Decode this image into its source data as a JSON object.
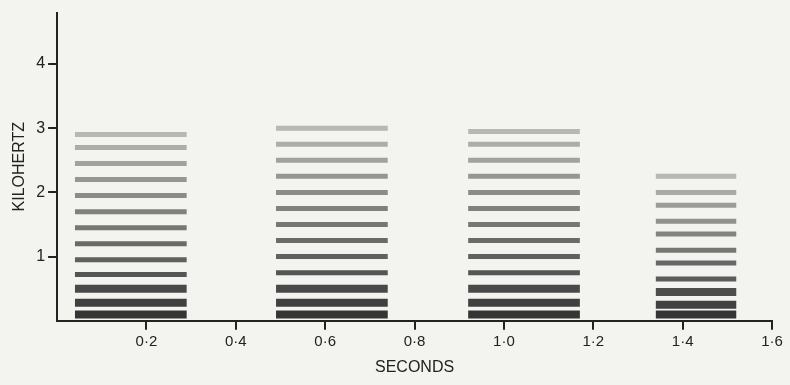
{
  "chart_data": {
    "type": "spectrogram",
    "xlabel": "SECONDS",
    "ylabel": "KILOHERTZ",
    "xlim": [
      0,
      1.6
    ],
    "ylim": [
      0,
      4.8
    ],
    "xticks": [
      {
        "value": 0.2,
        "label": "0·2"
      },
      {
        "value": 0.4,
        "label": "0·4"
      },
      {
        "value": 0.6,
        "label": "0·6"
      },
      {
        "value": 0.8,
        "label": "0·8"
      },
      {
        "value": 1.0,
        "label": "1·0"
      },
      {
        "value": 1.2,
        "label": "1·2"
      },
      {
        "value": 1.4,
        "label": "1·4"
      },
      {
        "value": 1.6,
        "label": "1·6"
      }
    ],
    "yticks": [
      1,
      2,
      3,
      4
    ],
    "grid": false,
    "color": "#2a2a2a",
    "sounds": [
      {
        "start": 0.04,
        "end": 0.29,
        "harmonics": [
          0.1,
          0.28,
          0.5,
          0.72,
          0.95,
          1.2,
          1.45,
          1.7,
          1.95,
          2.2,
          2.45,
          2.7,
          2.9
        ]
      },
      {
        "start": 0.49,
        "end": 0.74,
        "harmonics": [
          0.1,
          0.28,
          0.5,
          0.75,
          1.0,
          1.25,
          1.5,
          1.75,
          2.0,
          2.25,
          2.5,
          2.75,
          3.0
        ]
      },
      {
        "start": 0.92,
        "end": 1.17,
        "harmonics": [
          0.1,
          0.28,
          0.5,
          0.75,
          1.0,
          1.25,
          1.5,
          1.75,
          2.0,
          2.25,
          2.5,
          2.75,
          2.95
        ]
      },
      {
        "start": 1.34,
        "end": 1.52,
        "harmonics": [
          0.1,
          0.25,
          0.45,
          0.65,
          0.9,
          1.1,
          1.35,
          1.55,
          1.8,
          2.0,
          2.25
        ]
      }
    ]
  }
}
